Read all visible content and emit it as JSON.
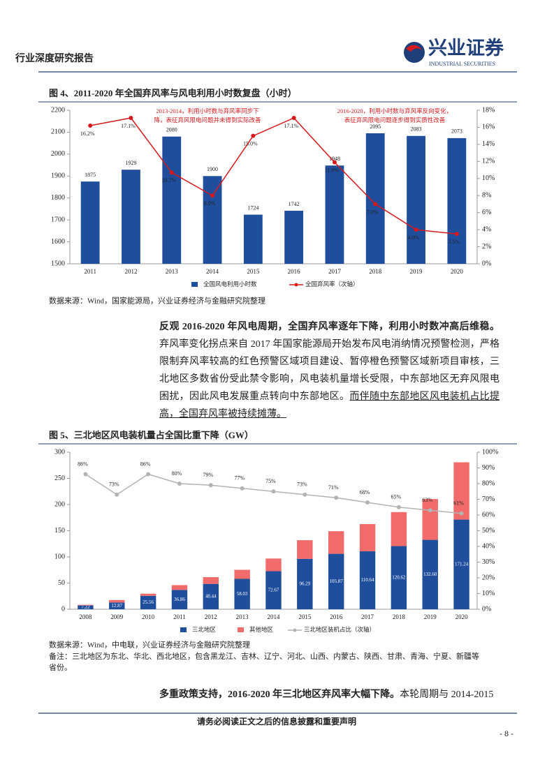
{
  "header": {
    "title": "行业深度研究报告",
    "logo": "兴业证券",
    "logo_en": "INDUSTRIAL SECURITIES"
  },
  "chart_data": [
    {
      "type": "combo",
      "title": "图 4、2011-2020 年全国弃风率与风电利用小时数复盘（小时）",
      "categories": [
        "2011",
        "2012",
        "2013",
        "2014",
        "2015",
        "2016",
        "2017",
        "2018",
        "2019",
        "2020"
      ],
      "series": [
        {
          "name": "全国风电利用小时数",
          "type": "bar",
          "color": "#1f4e9c",
          "values": [
            1875,
            1929,
            2080,
            1900,
            1724,
            1742,
            1948,
            2095,
            2083,
            2073
          ]
        },
        {
          "name": "全国弃风率（次轴）",
          "type": "line",
          "axis": "y2",
          "color": "#d7191c",
          "values": [
            16.2,
            17.1,
            10.7,
            8.0,
            15.0,
            17.1,
            11.9,
            7.0,
            4.0,
            3.5
          ],
          "value_labels": [
            "16.2%",
            "17.1%",
            "10.7%",
            "8.0%",
            "15.0%",
            "17.1%",
            "11.9%",
            "7.0%",
            "4.0%",
            "3.5%"
          ]
        }
      ],
      "ylim": [
        1500,
        2200
      ],
      "yticks": [
        1500,
        1600,
        1700,
        1800,
        1900,
        2000,
        2100,
        2200
      ],
      "y2lim": [
        0,
        18
      ],
      "y2ticks": [
        {
          "value": 0,
          "label": "0%"
        },
        {
          "value": 2,
          "label": "2%"
        },
        {
          "value": 4,
          "label": "4%"
        },
        {
          "value": 6,
          "label": "6%"
        },
        {
          "value": 8,
          "label": "8%"
        },
        {
          "value": 10,
          "label": "10%"
        },
        {
          "value": 12,
          "label": "12%"
        },
        {
          "value": 14,
          "label": "14%"
        },
        {
          "value": 16,
          "label": "16%"
        },
        {
          "value": 18,
          "label": "18%"
        }
      ],
      "annotations": [
        [
          "2013-2014，利用小时数与弃风率同步下",
          "降，表征弃风限电问题并未得到实际改善"
        ],
        [
          "2016-2020，利用小时数与弃风率反向变化，",
          "表征弃风限电问题逐步得到实质性改善"
        ]
      ],
      "source": "数据来源：Wind，国家能源局，兴业证券经济与金融研究院整理"
    },
    {
      "type": "combo",
      "stacked": true,
      "title": "图 5、三北地区风电装机量占全国比重下降（GW）",
      "categories": [
        "2008",
        "2009",
        "2010",
        "2011",
        "2012",
        "2013",
        "2014",
        "2015",
        "2016",
        "2017",
        "2018",
        "2019",
        "2020"
      ],
      "series": [
        {
          "name": "三北地区",
          "type": "bar",
          "color": "#1f4e9c",
          "values": [
            7.22,
            12.87,
            25.56,
            36.86,
            48.44,
            58.03,
            72.67,
            96.29,
            105.87,
            110.64,
            120.62,
            132.6,
            171.24
          ],
          "value_labels": [
            "7.22",
            "12.87",
            "25.56",
            "36.86",
            "48.44",
            "58.03",
            "72.67",
            "96.29",
            "105.87",
            "110.64",
            "120.62",
            "132.60",
            "171.24"
          ]
        },
        {
          "name": "其他地区",
          "type": "bar",
          "color": "#f26b6b",
          "values": [
            1.2,
            4.7,
            4.2,
            9.2,
            12.9,
            17.3,
            24.2,
            35.6,
            43.2,
            52.1,
            65.0,
            77.9,
            109.5
          ]
        },
        {
          "name": "三北地区装机占比（次轴）",
          "type": "line",
          "axis": "y2",
          "color": "#b3b3b3",
          "values": [
            86,
            73,
            86,
            80,
            79,
            77,
            75,
            73,
            71,
            68,
            65,
            63,
            61
          ],
          "value_labels": [
            "86%",
            "73%",
            "86%",
            "80%",
            "79%",
            "77%",
            "75%",
            "73%",
            "71%",
            "68%",
            "65%",
            "63%",
            "61%"
          ]
        }
      ],
      "ylim": [
        0,
        300
      ],
      "yticks": [
        0,
        50,
        100,
        150,
        200,
        250,
        300
      ],
      "y2lim": [
        0,
        100
      ],
      "y2ticks": [
        {
          "value": 0,
          "label": "0%"
        },
        {
          "value": 10,
          "label": "10%"
        },
        {
          "value": 20,
          "label": "20%"
        },
        {
          "value": 30,
          "label": "30%"
        },
        {
          "value": 40,
          "label": "40%"
        },
        {
          "value": 50,
          "label": "50%"
        },
        {
          "value": 60,
          "label": "60%"
        },
        {
          "value": 70,
          "label": "70%"
        },
        {
          "value": 80,
          "label": "80%"
        },
        {
          "value": 90,
          "label": "90%"
        },
        {
          "value": 100,
          "label": "100%"
        }
      ],
      "source": "数据来源：Wind，中电联，兴业证券经济与金融研究院整理",
      "note": "备注：三北地区为东北、华北、西北地区，包含黑龙江、吉林、辽宁、河北、山西、内蒙古、陕西、甘肃、青海、宁夏、新疆等省份。"
    }
  ],
  "paragraphs": [
    {
      "bold": "反观 2016-2020 年风电周期，全国弃风率逐年下降，利用小时数冲高后维稳。",
      "text": "弃风率变化拐点来自 2017 年国家能源局开始发布风电消纳情况预警检测，严格限制弃风率较高的红色预警区域项目建设、暂停橙色预警区域新项目审核，三北地区多数省份受此禁令影响，风电装机量增长受限，中东部地区无弃风限电困扰，因此风电发展重点转向中东部地区。",
      "underline": "而伴随中东部地区风电装机占比提高，全国弃风率被持续摊薄。"
    },
    {
      "bold": "多重政策支持，2016-2020 年三北地区弃风率大幅下降。",
      "text": "本轮周期与 2014-2015"
    }
  ],
  "footer": {
    "notice": "请务必阅读正文之后的信息披露和重要声明",
    "page": "- 8 -"
  }
}
